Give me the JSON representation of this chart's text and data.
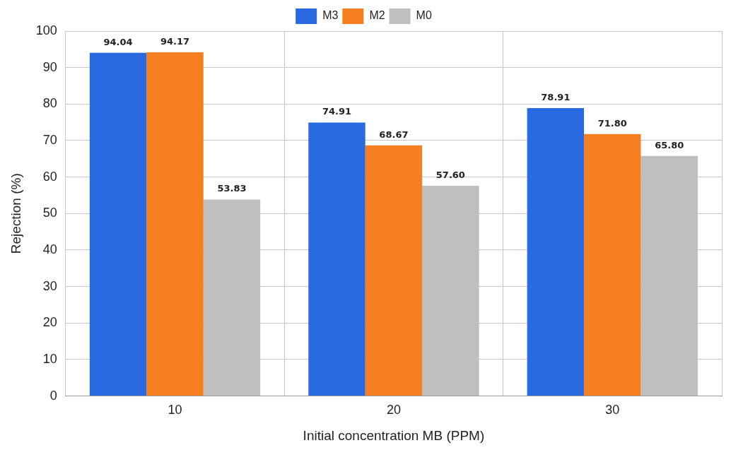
{
  "chart_data": {
    "type": "bar",
    "xlabel": "Initial concentration MB (PPM)",
    "ylabel": "Rejection (%)",
    "categories": [
      "10",
      "20",
      "30"
    ],
    "series": [
      {
        "name": "M3",
        "color": "#2a6ae0",
        "values": [
          94.04,
          74.91,
          78.91
        ],
        "value_labels": [
          "94.04",
          "74.91",
          "78.91"
        ]
      },
      {
        "name": "M2",
        "color": "#f57f20",
        "values": [
          94.17,
          68.67,
          71.8
        ],
        "value_labels": [
          "94.17",
          "68.67",
          "71.80"
        ]
      },
      {
        "name": "M0",
        "color": "#bfbfbf",
        "values": [
          53.83,
          57.6,
          65.8
        ],
        "value_labels": [
          "53.83",
          "57.60",
          "65.80"
        ]
      }
    ],
    "ylim": [
      0,
      100
    ],
    "yticks": [
      0,
      10,
      20,
      30,
      40,
      50,
      60,
      70,
      80,
      90,
      100
    ],
    "grid": true,
    "legend": "top"
  }
}
